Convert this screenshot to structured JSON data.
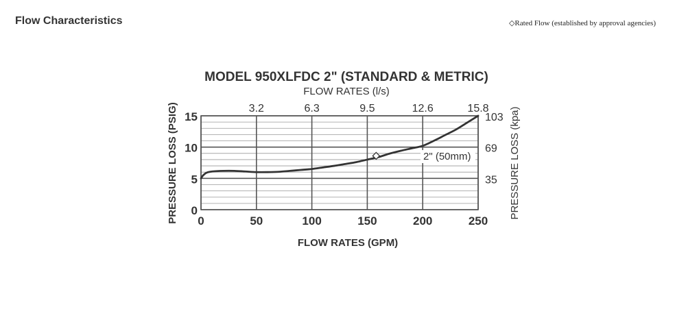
{
  "page": {
    "title": "Flow Characteristics",
    "legend_note": "◇Rated Flow (established by approval agencies)"
  },
  "chart_data": {
    "type": "line",
    "title": "MODEL 950XLFDC  2\" (STANDARD & METRIC)",
    "top_xlabel": "FLOW RATES (l/s)",
    "xlabel": "FLOW RATES (GPM)",
    "ylabel": "PRESSURE LOSS (PSIG)",
    "right_ylabel": "PRESSURE LOSS (kpa)",
    "xlim": [
      0,
      250
    ],
    "ylim": [
      0,
      15
    ],
    "x_ticks": [
      0,
      50,
      100,
      150,
      200,
      250
    ],
    "y_ticks": [
      0,
      5,
      10,
      15
    ],
    "top_ticks": [
      {
        "x": 50,
        "label": "3.2"
      },
      {
        "x": 100,
        "label": "6.3"
      },
      {
        "x": 150,
        "label": "9.5"
      },
      {
        "x": 200,
        "label": "12.6"
      },
      {
        "x": 250,
        "label": "15.8"
      }
    ],
    "right_ticks": [
      {
        "y": 15,
        "label": "103"
      },
      {
        "y": 10,
        "label": "69"
      },
      {
        "y": 5,
        "label": "35"
      }
    ],
    "minor_grid_step": 1,
    "grid": true,
    "series": [
      {
        "name": "2\" (50mm)",
        "x": [
          0,
          2,
          5,
          10,
          20,
          30,
          40,
          50,
          60,
          70,
          80,
          90,
          100,
          110,
          120,
          130,
          140,
          150,
          160,
          170,
          180,
          190,
          200,
          210,
          220,
          230,
          240,
          250
        ],
        "y": [
          5.0,
          5.5,
          5.9,
          6.1,
          6.2,
          6.2,
          6.1,
          6.0,
          6.0,
          6.05,
          6.2,
          6.35,
          6.5,
          6.75,
          7.0,
          7.3,
          7.6,
          8.0,
          8.4,
          8.95,
          9.4,
          9.8,
          10.2,
          11.0,
          11.9,
          12.8,
          13.9,
          15.0
        ]
      }
    ],
    "rated_flow": {
      "x": 158,
      "y": 8.6
    },
    "series_label": "2\" (50mm)",
    "colors": {
      "line": "#333333",
      "grid": "#555555",
      "minor_grid": "#999999",
      "text": "#333333"
    }
  }
}
